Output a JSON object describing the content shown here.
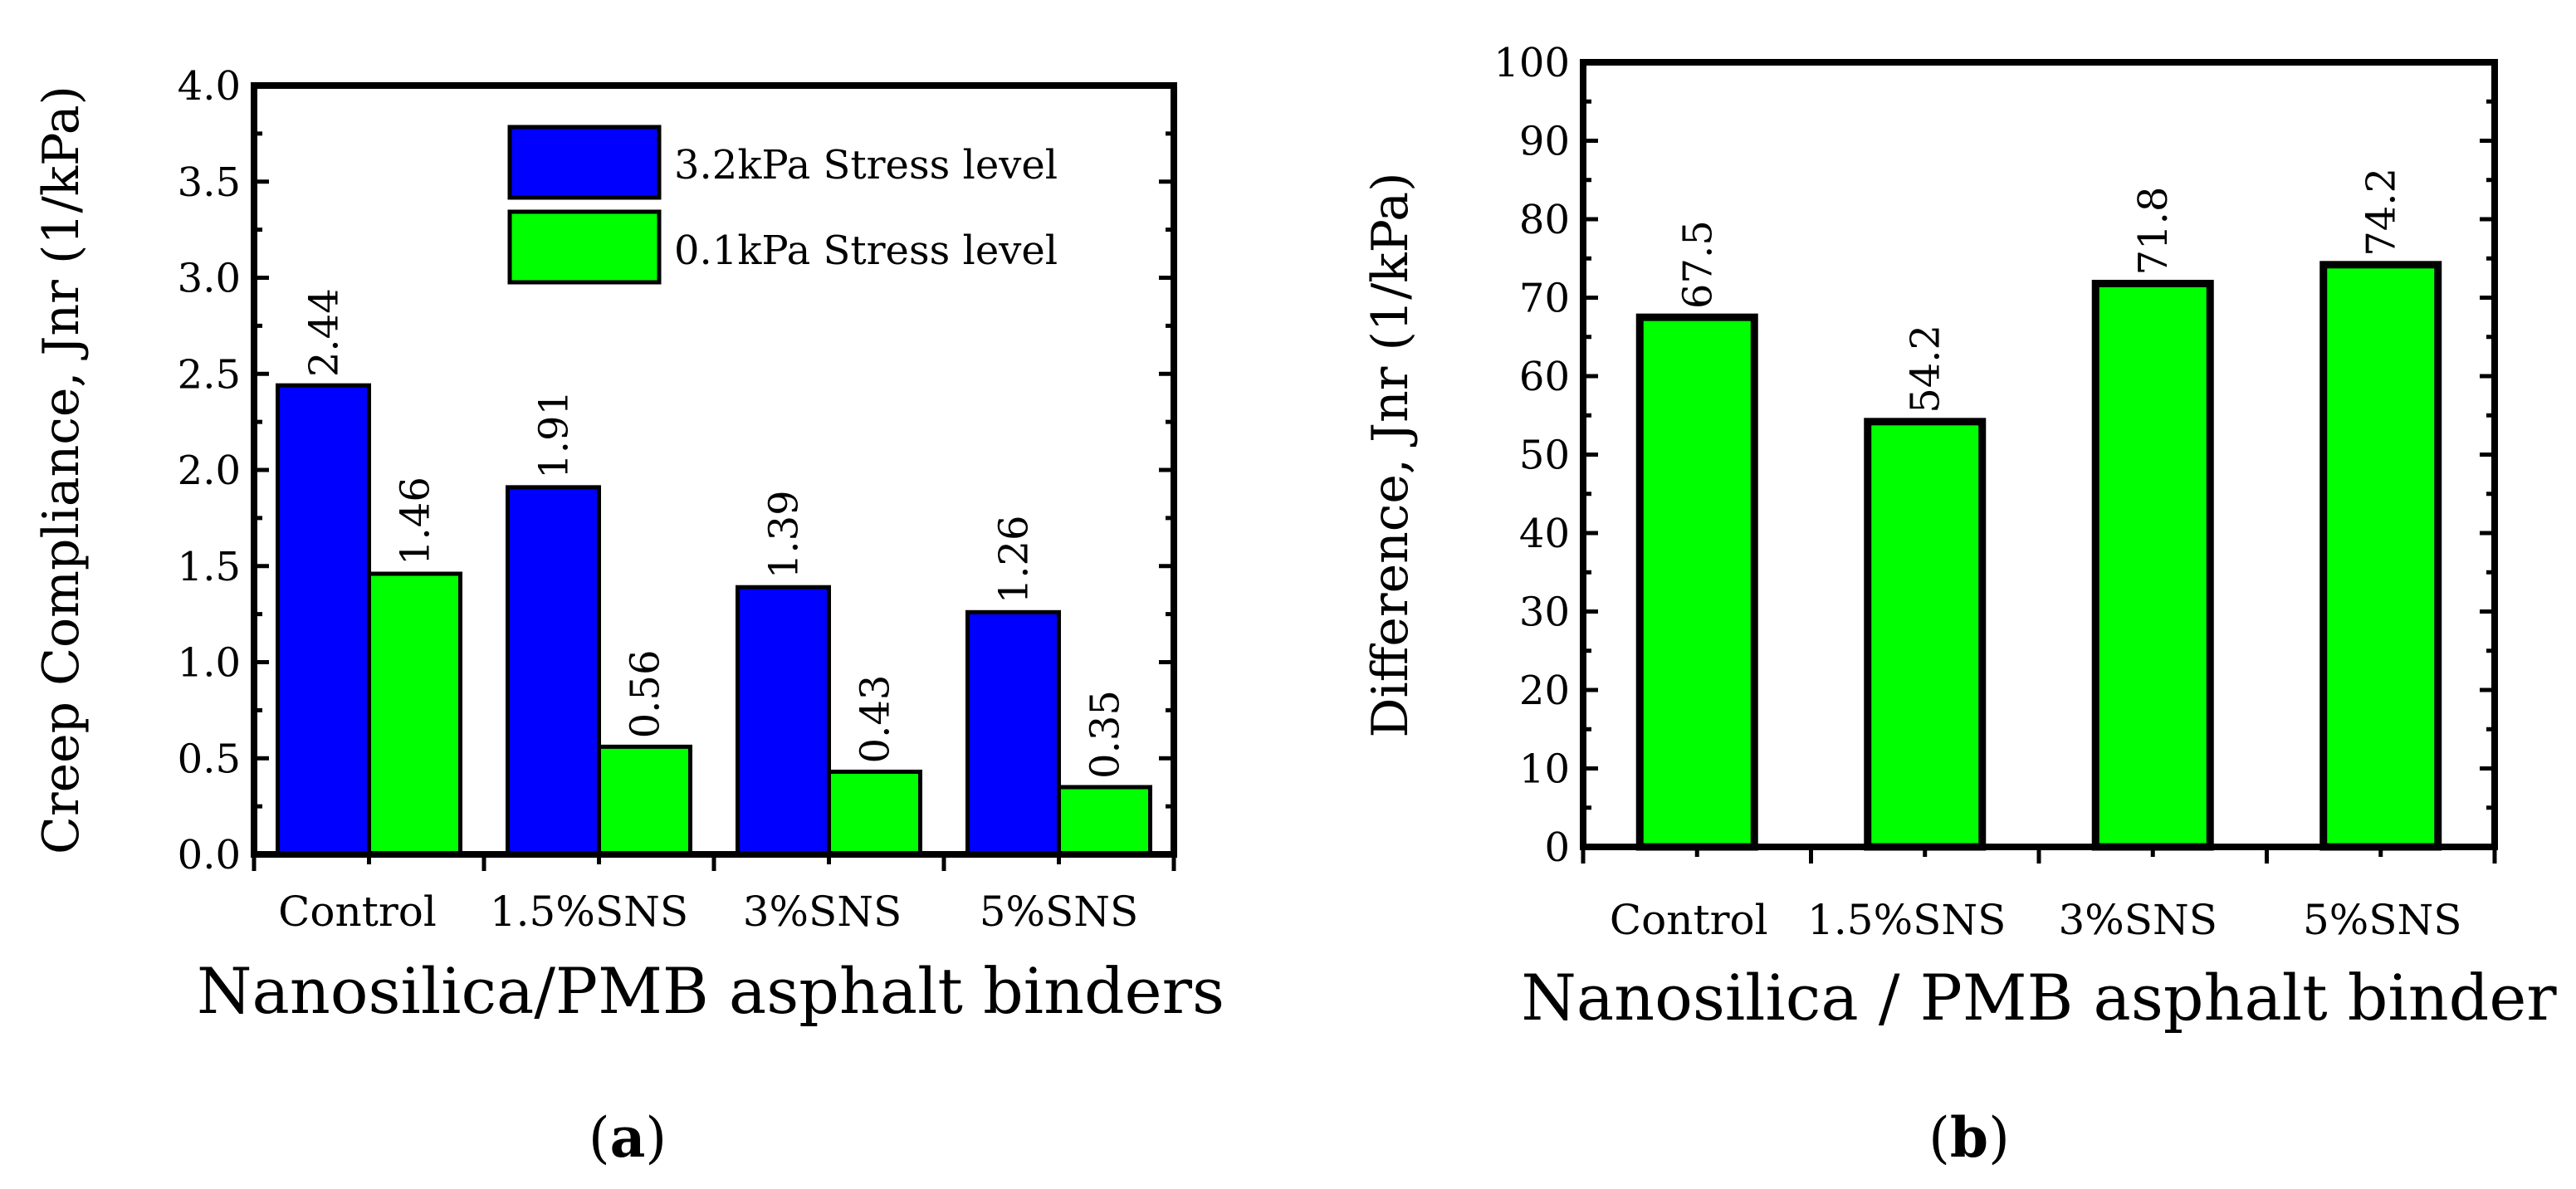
{
  "chart_data": [
    {
      "type": "bar",
      "panel_label": "(a)",
      "panel_letter": "a",
      "xlabel": "Nanosilica/PMB asphalt binders",
      "ylabel": "Creep Compliance, Jnr (1/kPa)",
      "ylim": [
        0,
        4.0
      ],
      "yticks": [
        "0.0",
        "0.5",
        "1.0",
        "1.5",
        "2.0",
        "2.5",
        "3.0",
        "3.5",
        "4.0"
      ],
      "categories": [
        "Control",
        "1.5%SNS",
        "3%SNS",
        "5%SNS"
      ],
      "series": [
        {
          "name": "3.2kPa Stress level",
          "color": "#0000ff",
          "values": [
            2.44,
            1.91,
            1.39,
            1.26
          ],
          "labels": [
            "2.44",
            "1.91",
            "1.39",
            "1.26"
          ]
        },
        {
          "name": "0.1kPa Stress level",
          "color": "#00ff00",
          "values": [
            1.46,
            0.56,
            0.43,
            0.35
          ],
          "labels": [
            "1.46",
            "0.56",
            "0.43",
            "0.35"
          ]
        }
      ],
      "legend_position": "top-right",
      "grid": false
    },
    {
      "type": "bar",
      "panel_label": "(b)",
      "panel_letter": "b",
      "xlabel": "Nanosilica / PMB asphalt binder",
      "ylabel": "Difference, Jnr (1/kPa)",
      "ylim": [
        0,
        100
      ],
      "yticks": [
        "0",
        "10",
        "20",
        "30",
        "40",
        "50",
        "60",
        "70",
        "80",
        "90",
        "100"
      ],
      "categories": [
        "Control",
        "1.5%SNS",
        "3%SNS",
        "5%SNS"
      ],
      "series": [
        {
          "name": "Difference",
          "color": "#00ff00",
          "values": [
            67.5,
            54.2,
            71.8,
            74.2
          ],
          "labels": [
            "67.5",
            "54.2",
            "71.8",
            "74.2"
          ]
        }
      ],
      "grid": false
    }
  ]
}
